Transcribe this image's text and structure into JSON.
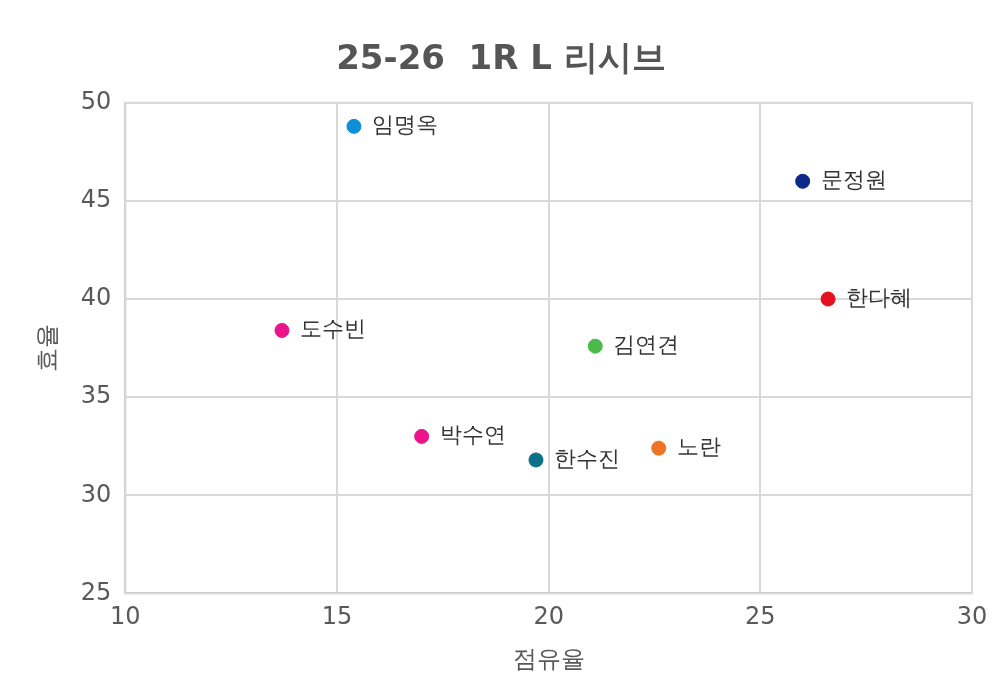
{
  "chart_data": {
    "type": "scatter",
    "title": "25-26  1R L 리시브",
    "xlabel": "점유율",
    "ylabel": "효율",
    "xlim": [
      10,
      30
    ],
    "xticks": [
      10,
      15,
      20,
      25,
      30
    ],
    "ylim": [
      25,
      50
    ],
    "yticks": [
      25,
      30,
      35,
      40,
      45,
      50
    ],
    "grid": true,
    "legend": false,
    "marker": "circle",
    "series": [
      {
        "name": "임명옥",
        "color": "#0a8fd8",
        "x": [
          15.4
        ],
        "values": [
          48.8
        ]
      },
      {
        "name": "문정원",
        "color": "#0c2a8a",
        "x": [
          26.0
        ],
        "values": [
          46.0
        ]
      },
      {
        "name": "한다혜",
        "color": "#e5101f",
        "x": [
          26.6
        ],
        "values": [
          40.0
        ]
      },
      {
        "name": "도수빈",
        "color": "#ec148c",
        "x": [
          13.7
        ],
        "values": [
          38.4
        ]
      },
      {
        "name": "김연견",
        "color": "#4cba48",
        "x": [
          21.1
        ],
        "values": [
          37.6
        ]
      },
      {
        "name": "박수연",
        "color": "#ec148c",
        "x": [
          17.0
        ],
        "values": [
          33.0
        ]
      },
      {
        "name": "한수진",
        "color": "#0c7088",
        "x": [
          19.7
        ],
        "values": [
          31.8
        ]
      },
      {
        "name": "노란",
        "color": "#ef7426",
        "x": [
          22.6
        ],
        "values": [
          32.4
        ]
      }
    ]
  }
}
